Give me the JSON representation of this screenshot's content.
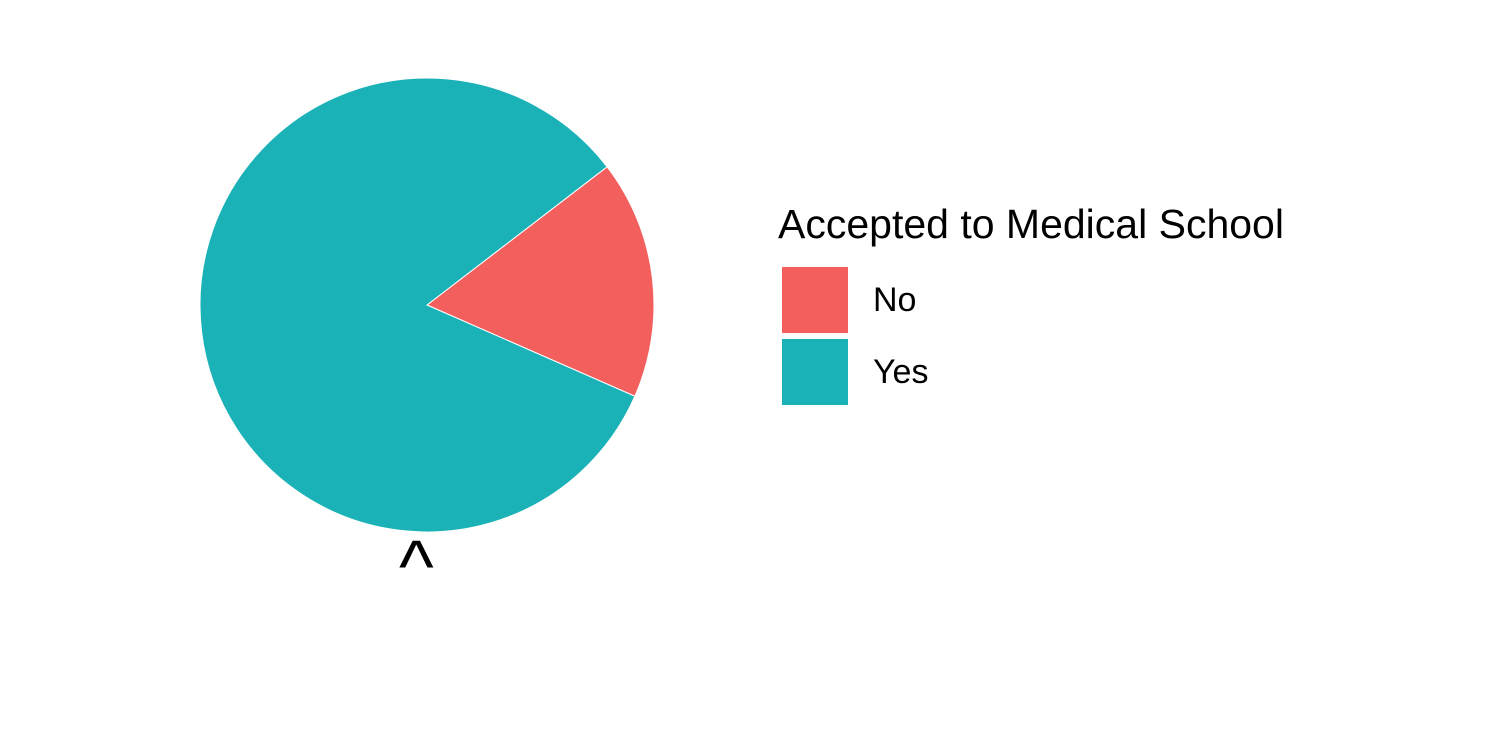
{
  "chart_data": {
    "type": "pie",
    "title": "",
    "slices": [
      {
        "label": "No",
        "value": 0.17,
        "color": "#F25F5C"
      },
      {
        "label": "Yes",
        "value": 0.83,
        "color": "#1AB2B7"
      }
    ],
    "legend": {
      "title": "Accepted to Medical School",
      "placement": "right"
    },
    "axis_tick_label": "^",
    "start": "angle between slices follows ggplot coord_polar: starts at 12 o'clock, clockwise",
    "grid": false
  }
}
